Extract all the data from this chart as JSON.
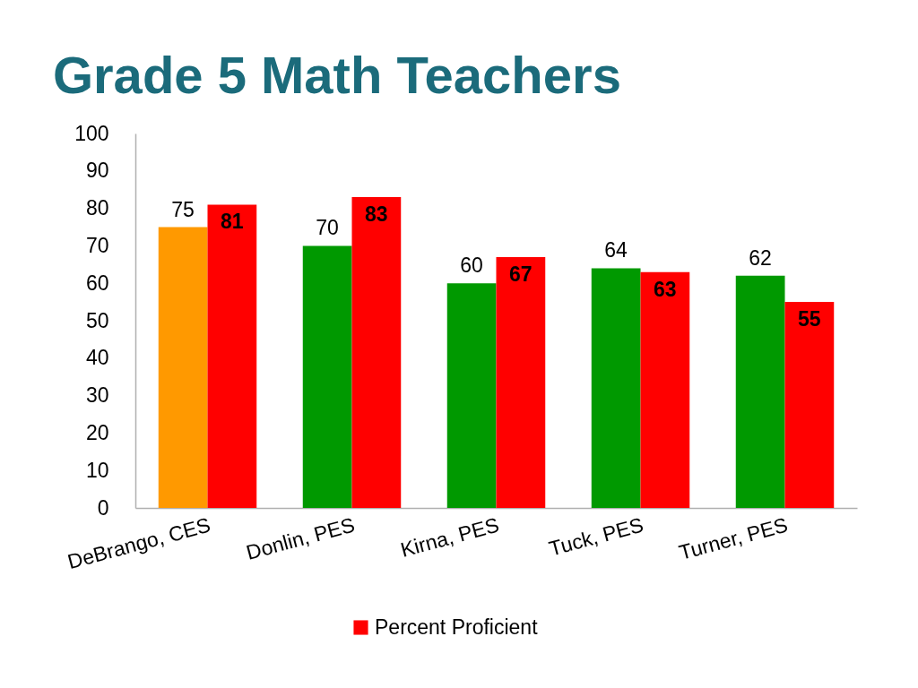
{
  "chart_data": {
    "type": "bar",
    "title": "Grade 5 Math Teachers",
    "categories": [
      "DeBrango, CES",
      "Donlin, PES",
      "Kirna, PES",
      "Tuck, PES",
      "Turner, PES"
    ],
    "series": [
      {
        "colors": [
          "#ff9900",
          "#009900",
          "#009900",
          "#009900",
          "#009900"
        ],
        "values": [
          75,
          70,
          60,
          64,
          62
        ]
      },
      {
        "name": "Percent Proficient",
        "color": "#ff0000",
        "values": [
          81,
          83,
          67,
          63,
          55
        ]
      }
    ],
    "ylim": [
      0,
      100
    ],
    "yticks": [
      0,
      10,
      20,
      30,
      40,
      50,
      60,
      70,
      80,
      90,
      100
    ],
    "data_labels": true,
    "legend": "bottom"
  }
}
